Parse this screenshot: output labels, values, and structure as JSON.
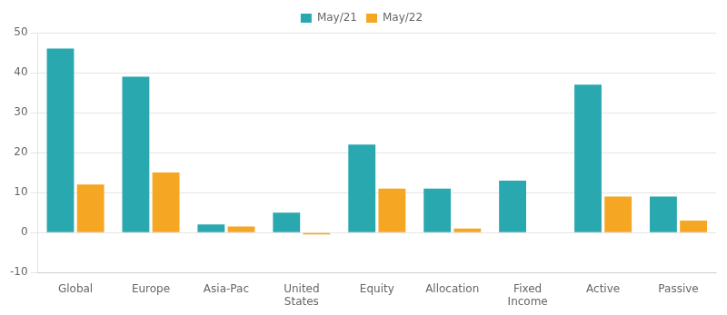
{
  "chart_data": {
    "type": "bar",
    "categories": [
      "Global",
      "Europe",
      "Asia-Pac",
      "United\nStates",
      "Equity",
      "Allocation",
      "Fixed\nIncome",
      "Active",
      "Passive"
    ],
    "series": [
      {
        "name": "May/21",
        "color": "#29A8B0",
        "values": [
          46,
          39,
          2,
          5,
          22,
          11,
          13,
          37,
          9
        ]
      },
      {
        "name": "May/22",
        "color": "#F5A623",
        "values": [
          12,
          15,
          1.5,
          -0.5,
          11,
          1,
          0,
          9,
          3
        ]
      }
    ],
    "ylim": [
      -10,
      50
    ],
    "yticks": [
      -10,
      0,
      10,
      20,
      30,
      40,
      50
    ],
    "grid": true,
    "legend": "top"
  }
}
